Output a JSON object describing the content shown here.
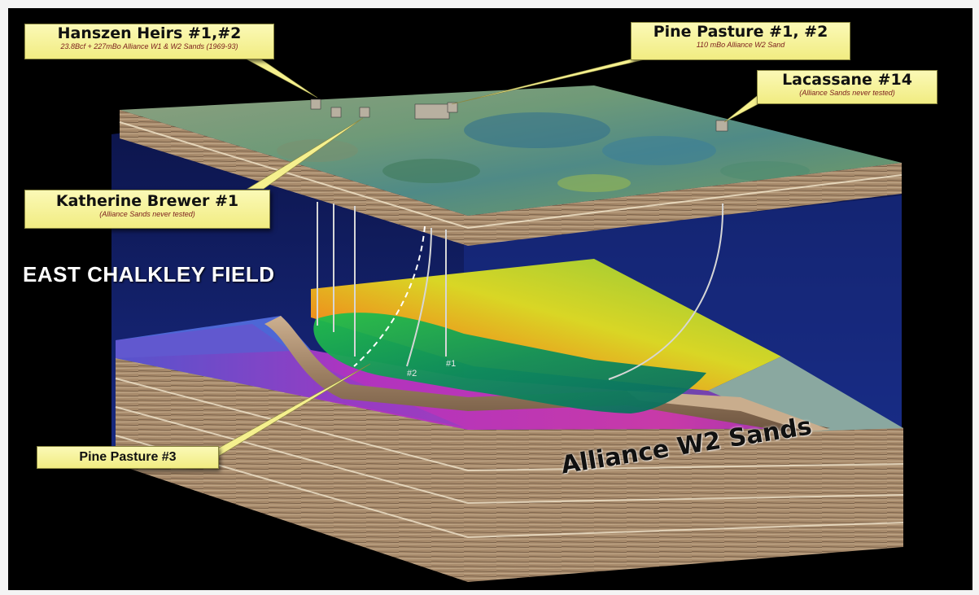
{
  "diagram": {
    "field_title": "EAST CHALKLEY FIELD",
    "sands_title": "Alliance W2 Sands",
    "callouts": {
      "hanszen": {
        "title": "Hanszen Heirs #1,#2",
        "subtitle": "23.8Bcf + 227mBo Alliance W1 & W2 Sands (1969-93)"
      },
      "pine_pasture_12": {
        "title": "Pine Pasture #1, #2",
        "subtitle": "110 mBo Alliance W2 Sand"
      },
      "lacassane": {
        "title": "Lacassane #14",
        "subtitle": "(Alliance Sands never tested)"
      },
      "katherine": {
        "title": "Katherine Brewer #1",
        "subtitle": "(Alliance Sands never tested)"
      },
      "pine_pasture_3": {
        "title": "Pine Pasture #3"
      }
    },
    "well_labels": {
      "w2": "#2",
      "w1": "#1"
    },
    "colors": {
      "background": "#000000",
      "callout_fill": "#f5f08e",
      "surface_green": "#5e8a5a",
      "reservoir_green": "#1fb04a",
      "sand_tan": "#b89a78",
      "grid_blue": "#1a2f8c"
    }
  }
}
